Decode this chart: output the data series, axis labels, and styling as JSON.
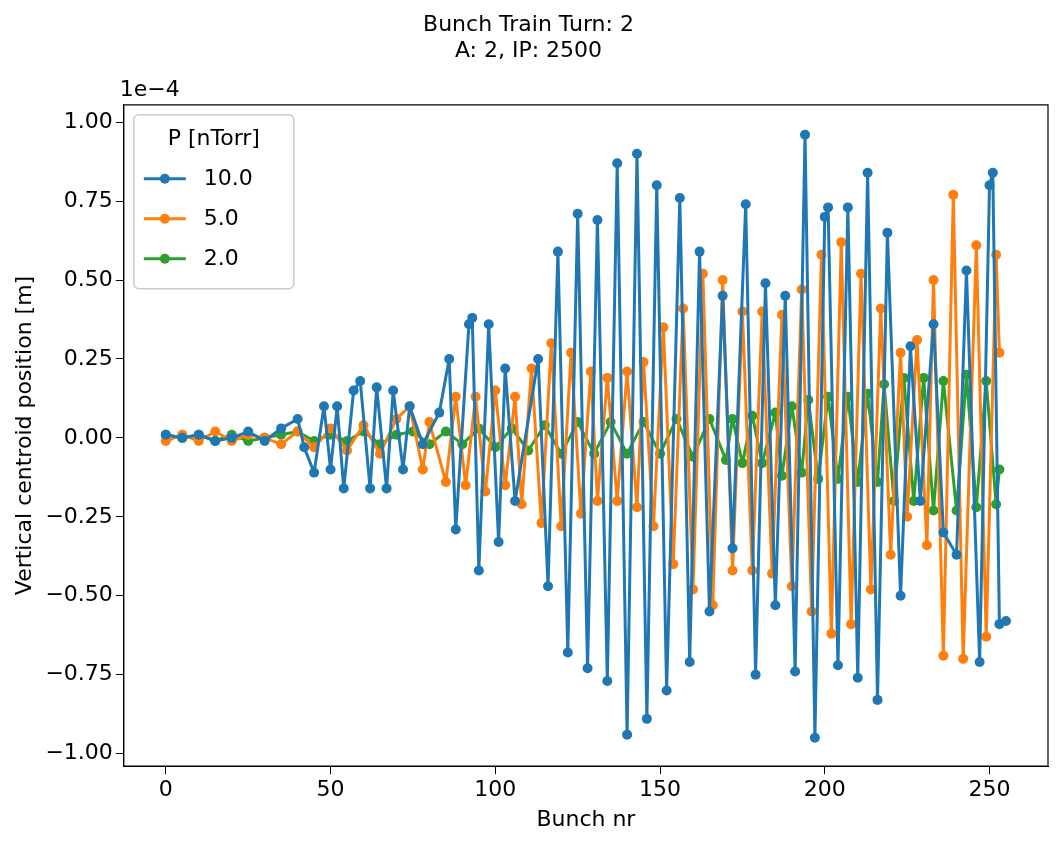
{
  "chart_data": {
    "type": "line",
    "title": "Bunch Train Turn: 2",
    "subtitle": "A: 2, IP: 2500",
    "xlabel": "Bunch nr",
    "ylabel": "Vertical centroid position [m]",
    "legend_title": "P [nTorr]",
    "legend": "top left",
    "marker": "circle",
    "annotations": [
      "1e−4"
    ],
    "xlim": [
      -12.75,
      267.75
    ],
    "xticks": [
      0,
      50,
      100,
      150,
      200,
      250
    ],
    "ylim": [
      -1.04,
      1.055
    ],
    "yticks": [
      {
        "value": -1,
        "label": "−1.00"
      },
      {
        "value": -0.75,
        "label": "−0.75"
      },
      {
        "value": -0.5,
        "label": "−0.50"
      },
      {
        "value": -0.25,
        "label": "−0.25"
      },
      {
        "value": 0,
        "label": "0.00"
      },
      {
        "value": 0.25,
        "label": "0.25"
      },
      {
        "value": 0.5,
        "label": "0.50"
      },
      {
        "value": 0.75,
        "label": "0.75"
      },
      {
        "value": 1,
        "label": "1.00"
      }
    ],
    "series": [
      {
        "name": "10.0",
        "color": "#1f77b4",
        "x": [
          0,
          5,
          10,
          15,
          20,
          25,
          30,
          35,
          40,
          42,
          45,
          48,
          50,
          52,
          54,
          57,
          59,
          62,
          64,
          67,
          69,
          72,
          74,
          78,
          83,
          86,
          88,
          92,
          93,
          95,
          98,
          101,
          103,
          106,
          113,
          116,
          119,
          122,
          125,
          128,
          131,
          134,
          137,
          140,
          143,
          146,
          149,
          152,
          156,
          159,
          162,
          165,
          169,
          172,
          176,
          179,
          182,
          185,
          188,
          191,
          194,
          197,
          200,
          201,
          204,
          207,
          210,
          213,
          216,
          219,
          223,
          226,
          229,
          233,
          236,
          240,
          243,
          247,
          250,
          251,
          253,
          255
        ],
        "values": [
          0.01,
          0.0,
          0.01,
          -0.01,
          0.0,
          0.02,
          -0.01,
          0.03,
          0.06,
          -0.03,
          -0.11,
          0.1,
          -0.1,
          0.1,
          -0.16,
          0.15,
          0.18,
          -0.16,
          0.16,
          -0.16,
          0.15,
          -0.1,
          0.1,
          -0.02,
          0.08,
          0.25,
          -0.29,
          0.36,
          0.38,
          -0.42,
          0.36,
          -0.33,
          0.22,
          -0.2,
          0.25,
          -0.47,
          0.59,
          -0.68,
          0.71,
          -0.73,
          0.69,
          -0.77,
          0.87,
          -0.94,
          0.9,
          -0.89,
          0.8,
          -0.8,
          0.76,
          -0.71,
          0.59,
          -0.55,
          0.45,
          -0.35,
          0.74,
          -0.75,
          0.49,
          -0.53,
          0.45,
          -0.74,
          0.96,
          -0.95,
          0.7,
          0.73,
          -0.72,
          0.73,
          -0.76,
          0.84,
          -0.83,
          0.65,
          -0.5,
          0.29,
          -0.2,
          0.36,
          -0.3,
          -0.37,
          0.53,
          -0.71,
          0.8,
          0.84,
          -0.59,
          -0.58
        ]
      },
      {
        "name": "5.0",
        "color": "#ff7f0e",
        "x": [
          0,
          5,
          10,
          15,
          20,
          25,
          30,
          35,
          40,
          45,
          50,
          55,
          60,
          65,
          70,
          74,
          78,
          80,
          85,
          88,
          91,
          94,
          97,
          100,
          103,
          106,
          108,
          111,
          114,
          117,
          120,
          123,
          126,
          129,
          131,
          134,
          137,
          140,
          143,
          145,
          148,
          151,
          154,
          157,
          160,
          163,
          166,
          169,
          172,
          175,
          178,
          181,
          184,
          187,
          190,
          193,
          196,
          199,
          202,
          205,
          208,
          211,
          214,
          217,
          220,
          223,
          225,
          228,
          231,
          233,
          236,
          239,
          242,
          246,
          249,
          252,
          253
        ],
        "values": [
          -0.01,
          0.01,
          -0.01,
          0.02,
          -0.01,
          0.01,
          0.0,
          -0.02,
          0.02,
          -0.03,
          0.03,
          -0.04,
          0.04,
          -0.05,
          0.06,
          0.1,
          -0.1,
          0.05,
          -0.14,
          0.13,
          -0.15,
          0.13,
          -0.17,
          0.15,
          -0.15,
          0.13,
          -0.21,
          0.22,
          -0.27,
          0.3,
          -0.28,
          0.27,
          -0.24,
          0.21,
          -0.2,
          0.19,
          -0.2,
          0.21,
          -0.22,
          0.24,
          -0.28,
          0.35,
          -0.4,
          0.41,
          -0.48,
          0.52,
          -0.53,
          0.5,
          -0.42,
          0.4,
          -0.42,
          0.4,
          -0.43,
          0.39,
          -0.47,
          0.47,
          -0.55,
          0.58,
          -0.62,
          0.62,
          -0.59,
          0.52,
          -0.48,
          0.41,
          -0.37,
          0.27,
          -0.25,
          0.31,
          -0.34,
          0.5,
          -0.69,
          0.77,
          -0.7,
          0.61,
          -0.63,
          0.58,
          0.27
        ]
      },
      {
        "name": "2.0",
        "color": "#2ca02c",
        "x": [
          0,
          5,
          10,
          15,
          20,
          25,
          30,
          35,
          40,
          45,
          50,
          55,
          60,
          65,
          70,
          75,
          80,
          85,
          90,
          95,
          100,
          105,
          110,
          115,
          120,
          125,
          130,
          135,
          140,
          145,
          150,
          155,
          160,
          165,
          170,
          172,
          175,
          178,
          181,
          185,
          187,
          190,
          193,
          195,
          198,
          201,
          204,
          207,
          210,
          213,
          216,
          218,
          221,
          224,
          227,
          230,
          233,
          236,
          240,
          243,
          246,
          249,
          252,
          253
        ],
        "values": [
          0.01,
          0.0,
          0.01,
          -0.01,
          0.01,
          -0.01,
          0.0,
          0.01,
          0.02,
          -0.01,
          0.01,
          -0.01,
          0.02,
          -0.02,
          0.01,
          0.02,
          -0.02,
          0.02,
          -0.02,
          0.03,
          -0.03,
          0.03,
          -0.04,
          0.04,
          -0.05,
          0.05,
          -0.05,
          0.05,
          -0.05,
          0.05,
          -0.05,
          0.06,
          -0.06,
          0.06,
          -0.07,
          0.06,
          -0.08,
          0.07,
          -0.08,
          0.08,
          -0.12,
          0.1,
          -0.11,
          0.12,
          -0.13,
          0.13,
          -0.13,
          0.13,
          -0.14,
          0.14,
          -0.14,
          0.17,
          -0.2,
          0.19,
          -0.2,
          0.19,
          -0.23,
          0.18,
          -0.23,
          0.2,
          -0.22,
          0.18,
          -0.21,
          -0.1
        ]
      }
    ]
  }
}
